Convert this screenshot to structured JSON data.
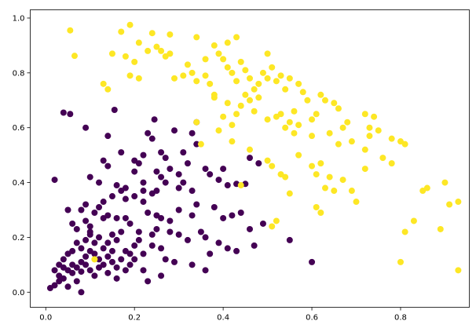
{
  "chart_data": {
    "type": "scatter",
    "title": "",
    "xlabel": "",
    "ylabel": "",
    "xlim": [
      -0.035,
      0.955
    ],
    "ylim": [
      -0.055,
      1.03
    ],
    "grid": false,
    "x_ticks": [
      "0.0",
      "0.2",
      "0.4",
      "0.6",
      "0.8"
    ],
    "y_ticks": [
      "0.0",
      "0.2",
      "0.4",
      "0.6",
      "0.8",
      "1.0"
    ],
    "colors": {
      "class_0": "#440154",
      "class_1": "#fde725"
    },
    "series": [
      {
        "color": "#440154",
        "points": [
          [
            0.02,
            0.41
          ],
          [
            0.04,
            0.655
          ],
          [
            0.055,
            0.65
          ],
          [
            0.155,
            0.665
          ],
          [
            0.09,
            0.6
          ],
          [
            0.14,
            0.57
          ],
          [
            0.245,
            0.63
          ],
          [
            0.17,
            0.51
          ],
          [
            0.23,
            0.58
          ],
          [
            0.24,
            0.56
          ],
          [
            0.22,
            0.5
          ],
          [
            0.29,
            0.59
          ],
          [
            0.34,
            0.62
          ],
          [
            0.34,
            0.54
          ],
          [
            0.33,
            0.58
          ],
          [
            0.2,
            0.48
          ],
          [
            0.21,
            0.47
          ],
          [
            0.26,
            0.51
          ],
          [
            0.27,
            0.49
          ],
          [
            0.31,
            0.51
          ],
          [
            0.32,
            0.47
          ],
          [
            0.25,
            0.44
          ],
          [
            0.2,
            0.44
          ],
          [
            0.26,
            0.42
          ],
          [
            0.13,
            0.48
          ],
          [
            0.14,
            0.46
          ],
          [
            0.12,
            0.4
          ],
          [
            0.1,
            0.42
          ],
          [
            0.16,
            0.39
          ],
          [
            0.17,
            0.37
          ],
          [
            0.18,
            0.38
          ],
          [
            0.22,
            0.4
          ],
          [
            0.22,
            0.37
          ],
          [
            0.24,
            0.36
          ],
          [
            0.25,
            0.37
          ],
          [
            0.27,
            0.4
          ],
          [
            0.28,
            0.45
          ],
          [
            0.3,
            0.43
          ],
          [
            0.31,
            0.4
          ],
          [
            0.3,
            0.38
          ],
          [
            0.33,
            0.37
          ],
          [
            0.36,
            0.45
          ],
          [
            0.37,
            0.43
          ],
          [
            0.39,
            0.41
          ],
          [
            0.41,
            0.39
          ],
          [
            0.43,
            0.395
          ],
          [
            0.45,
            0.395
          ],
          [
            0.4,
            0.45
          ],
          [
            0.46,
            0.49
          ],
          [
            0.48,
            0.47
          ],
          [
            0.34,
            0.32
          ],
          [
            0.33,
            0.28
          ],
          [
            0.38,
            0.31
          ],
          [
            0.4,
            0.27
          ],
          [
            0.42,
            0.28
          ],
          [
            0.44,
            0.29
          ],
          [
            0.46,
            0.23
          ],
          [
            0.49,
            0.25
          ],
          [
            0.55,
            0.19
          ],
          [
            0.47,
            0.17
          ],
          [
            0.43,
            0.15
          ],
          [
            0.41,
            0.16
          ],
          [
            0.39,
            0.18
          ],
          [
            0.37,
            0.14
          ],
          [
            0.36,
            0.2
          ],
          [
            0.35,
            0.22
          ],
          [
            0.32,
            0.19
          ],
          [
            0.3,
            0.21
          ],
          [
            0.28,
            0.26
          ],
          [
            0.26,
            0.27
          ],
          [
            0.25,
            0.23
          ],
          [
            0.24,
            0.21
          ],
          [
            0.23,
            0.29
          ],
          [
            0.22,
            0.33
          ],
          [
            0.2,
            0.35
          ],
          [
            0.18,
            0.34
          ],
          [
            0.15,
            0.35
          ],
          [
            0.13,
            0.33
          ],
          [
            0.12,
            0.31
          ],
          [
            0.11,
            0.29
          ],
          [
            0.09,
            0.32
          ],
          [
            0.08,
            0.3
          ],
          [
            0.05,
            0.3
          ],
          [
            0.06,
            0.25
          ],
          [
            0.07,
            0.23
          ],
          [
            0.09,
            0.26
          ],
          [
            0.1,
            0.24
          ],
          [
            0.13,
            0.27
          ],
          [
            0.14,
            0.28
          ],
          [
            0.16,
            0.27
          ],
          [
            0.18,
            0.27
          ],
          [
            0.19,
            0.25
          ],
          [
            0.21,
            0.22
          ],
          [
            0.21,
            0.19
          ],
          [
            0.2,
            0.17
          ],
          [
            0.19,
            0.14
          ],
          [
            0.22,
            0.14
          ],
          [
            0.24,
            0.17
          ],
          [
            0.26,
            0.16
          ],
          [
            0.27,
            0.12
          ],
          [
            0.29,
            0.11
          ],
          [
            0.22,
            0.08
          ],
          [
            0.18,
            0.08
          ],
          [
            0.23,
            0.04
          ],
          [
            0.33,
            0.1
          ],
          [
            0.36,
            0.08
          ],
          [
            0.6,
            0.11
          ],
          [
            0.25,
            0.28
          ],
          [
            0.17,
            0.22
          ],
          [
            0.16,
            0.19
          ],
          [
            0.15,
            0.21
          ],
          [
            0.14,
            0.18
          ],
          [
            0.13,
            0.16
          ],
          [
            0.12,
            0.2
          ],
          [
            0.11,
            0.18
          ],
          [
            0.1,
            0.21
          ],
          [
            0.09,
            0.19
          ],
          [
            0.08,
            0.16
          ],
          [
            0.07,
            0.18
          ],
          [
            0.06,
            0.15
          ],
          [
            0.05,
            0.14
          ],
          [
            0.04,
            0.12
          ],
          [
            0.03,
            0.1
          ],
          [
            0.02,
            0.08
          ],
          [
            0.03,
            0.06
          ],
          [
            0.04,
            0.05
          ],
          [
            0.01,
            0.015
          ],
          [
            0.02,
            0.025
          ],
          [
            0.05,
            0.02
          ],
          [
            0.06,
            0.07
          ],
          [
            0.07,
            0.09
          ],
          [
            0.08,
            0.11
          ],
          [
            0.09,
            0.13
          ],
          [
            0.1,
            0.15
          ],
          [
            0.11,
            0.14
          ],
          [
            0.12,
            0.12
          ],
          [
            0.13,
            0.1
          ],
          [
            0.14,
            0.13
          ],
          [
            0.15,
            0.11
          ],
          [
            0.16,
            0.09
          ],
          [
            0.17,
            0.12
          ],
          [
            0.18,
            0.15
          ],
          [
            0.12,
            0.09
          ],
          [
            0.11,
            0.06
          ],
          [
            0.1,
            0.08
          ],
          [
            0.09,
            0.1
          ],
          [
            0.08,
            0.075
          ],
          [
            0.07,
            0.04
          ],
          [
            0.06,
            0.1
          ],
          [
            0.05,
            0.08
          ],
          [
            0.04,
            0.09
          ],
          [
            0.03,
            0.04
          ],
          [
            0.08,
            0.0
          ],
          [
            0.1,
            0.22
          ],
          [
            0.15,
            0.15
          ],
          [
            0.14,
            0.07
          ],
          [
            0.16,
            0.05
          ],
          [
            0.19,
            0.1
          ],
          [
            0.2,
            0.12
          ],
          [
            0.26,
            0.06
          ],
          [
            0.28,
            0.22
          ],
          [
            0.3,
            0.3
          ]
        ]
      },
      {
        "color": "#fde725",
        "points": [
          [
            0.055,
            0.955
          ],
          [
            0.065,
            0.862
          ],
          [
            0.19,
            0.975
          ],
          [
            0.17,
            0.95
          ],
          [
            0.24,
            0.945
          ],
          [
            0.28,
            0.94
          ],
          [
            0.34,
            0.93
          ],
          [
            0.15,
            0.87
          ],
          [
            0.21,
            0.91
          ],
          [
            0.23,
            0.88
          ],
          [
            0.26,
            0.88
          ],
          [
            0.27,
            0.86
          ],
          [
            0.28,
            0.87
          ],
          [
            0.25,
            0.895
          ],
          [
            0.2,
            0.84
          ],
          [
            0.18,
            0.86
          ],
          [
            0.13,
            0.76
          ],
          [
            0.14,
            0.74
          ],
          [
            0.19,
            0.79
          ],
          [
            0.21,
            0.78
          ],
          [
            0.38,
            0.9
          ],
          [
            0.41,
            0.91
          ],
          [
            0.43,
            0.93
          ],
          [
            0.36,
            0.85
          ],
          [
            0.39,
            0.87
          ],
          [
            0.4,
            0.85
          ],
          [
            0.32,
            0.83
          ],
          [
            0.33,
            0.8
          ],
          [
            0.31,
            0.79
          ],
          [
            0.29,
            0.78
          ],
          [
            0.34,
            0.77
          ],
          [
            0.36,
            0.79
          ],
          [
            0.37,
            0.76
          ],
          [
            0.38,
            0.72
          ],
          [
            0.41,
            0.82
          ],
          [
            0.42,
            0.8
          ],
          [
            0.44,
            0.84
          ],
          [
            0.45,
            0.81
          ],
          [
            0.43,
            0.77
          ],
          [
            0.46,
            0.78
          ],
          [
            0.47,
            0.74
          ],
          [
            0.48,
            0.76
          ],
          [
            0.45,
            0.72
          ],
          [
            0.5,
            0.87
          ],
          [
            0.49,
            0.8
          ],
          [
            0.5,
            0.78
          ],
          [
            0.51,
            0.82
          ],
          [
            0.52,
            0.77
          ],
          [
            0.53,
            0.79
          ],
          [
            0.54,
            0.74
          ],
          [
            0.55,
            0.78
          ],
          [
            0.57,
            0.76
          ],
          [
            0.58,
            0.73
          ],
          [
            0.59,
            0.7
          ],
          [
            0.62,
            0.72
          ],
          [
            0.63,
            0.7
          ],
          [
            0.65,
            0.69
          ],
          [
            0.66,
            0.67
          ],
          [
            0.6,
            0.63
          ],
          [
            0.61,
            0.65
          ],
          [
            0.56,
            0.66
          ],
          [
            0.55,
            0.62
          ],
          [
            0.52,
            0.64
          ],
          [
            0.5,
            0.63
          ],
          [
            0.47,
            0.66
          ],
          [
            0.44,
            0.68
          ],
          [
            0.43,
            0.65
          ],
          [
            0.42,
            0.61
          ],
          [
            0.4,
            0.64
          ],
          [
            0.39,
            0.59
          ],
          [
            0.38,
            0.71
          ],
          [
            0.41,
            0.69
          ],
          [
            0.46,
            0.7
          ],
          [
            0.48,
            0.71
          ],
          [
            0.53,
            0.65
          ],
          [
            0.54,
            0.6
          ],
          [
            0.57,
            0.61
          ],
          [
            0.56,
            0.58
          ],
          [
            0.6,
            0.57
          ],
          [
            0.64,
            0.58
          ],
          [
            0.67,
            0.6
          ],
          [
            0.68,
            0.62
          ],
          [
            0.66,
            0.54
          ],
          [
            0.69,
            0.55
          ],
          [
            0.72,
            0.65
          ],
          [
            0.73,
            0.6
          ],
          [
            0.74,
            0.64
          ],
          [
            0.75,
            0.59
          ],
          [
            0.72,
            0.52
          ],
          [
            0.73,
            0.57
          ],
          [
            0.78,
            0.56
          ],
          [
            0.8,
            0.55
          ],
          [
            0.81,
            0.54
          ],
          [
            0.76,
            0.49
          ],
          [
            0.78,
            0.47
          ],
          [
            0.72,
            0.45
          ],
          [
            0.62,
            0.47
          ],
          [
            0.57,
            0.5
          ],
          [
            0.5,
            0.48
          ],
          [
            0.51,
            0.46
          ],
          [
            0.42,
            0.55
          ],
          [
            0.46,
            0.52
          ],
          [
            0.35,
            0.54
          ],
          [
            0.34,
            0.62
          ],
          [
            0.53,
            0.43
          ],
          [
            0.54,
            0.42
          ],
          [
            0.6,
            0.46
          ],
          [
            0.61,
            0.43
          ],
          [
            0.64,
            0.42
          ],
          [
            0.67,
            0.41
          ],
          [
            0.63,
            0.38
          ],
          [
            0.65,
            0.37
          ],
          [
            0.69,
            0.37
          ],
          [
            0.7,
            0.33
          ],
          [
            0.55,
            0.36
          ],
          [
            0.61,
            0.31
          ],
          [
            0.62,
            0.29
          ],
          [
            0.44,
            0.39
          ],
          [
            0.51,
            0.24
          ],
          [
            0.52,
            0.26
          ],
          [
            0.85,
            0.37
          ],
          [
            0.86,
            0.38
          ],
          [
            0.9,
            0.4
          ],
          [
            0.91,
            0.32
          ],
          [
            0.93,
            0.33
          ],
          [
            0.83,
            0.26
          ],
          [
            0.81,
            0.22
          ],
          [
            0.89,
            0.23
          ],
          [
            0.8,
            0.11
          ],
          [
            0.93,
            0.08
          ],
          [
            0.11,
            0.12
          ]
        ]
      }
    ]
  }
}
